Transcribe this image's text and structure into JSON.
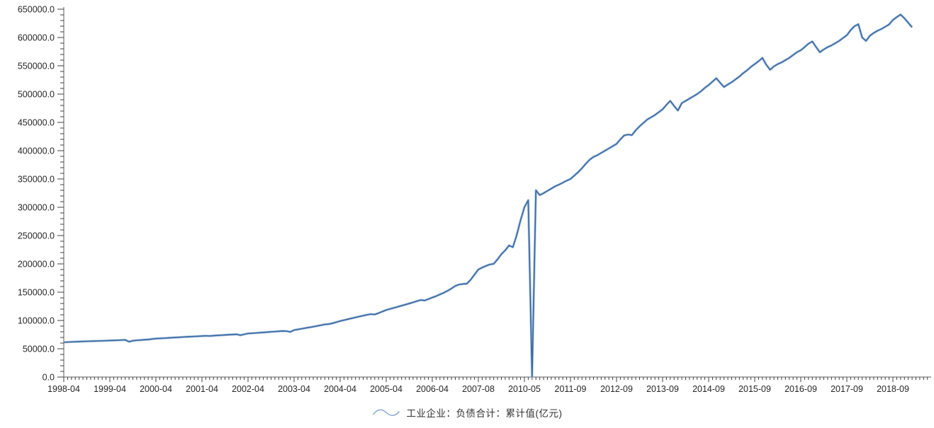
{
  "colors": {
    "background": "#ffffff",
    "axis": "#595959",
    "tick": "#404040",
    "text": "#262626",
    "line": "#3A6AA3",
    "line_halo": "#A5BfDC",
    "legend_icon": "#8AA9CE"
  },
  "chart_data": {
    "type": "line",
    "title": "",
    "legend": "工业企业：负债合计：累计值(亿元)",
    "grid": false,
    "legend_position": "bottom-center",
    "y_axis": {
      "min": 0,
      "max": 650000,
      "major_step": 50000,
      "minor_step": 10000,
      "labels": [
        "0.0",
        "50000.0",
        "100000.0",
        "150000.0",
        "200000.0",
        "250000.0",
        "300000.0",
        "350000.0",
        "400000.0",
        "450000.0",
        "500000.0",
        "550000.0",
        "600000.0",
        "650000.0"
      ]
    },
    "x_axis": {
      "tick_labels": [
        "1998-04",
        "1999-04",
        "2000-04",
        "2001-04",
        "2002-04",
        "2003-04",
        "2004-04",
        "2005-04",
        "2006-04",
        "2007-08",
        "2010-05",
        "2011-09",
        "2012-09",
        "2013-09",
        "2014-09",
        "2015-09",
        "2016-09",
        "2017-09",
        "2018-09"
      ],
      "points_per_label": 12
    },
    "series": [
      {
        "name": "工业企业：负债合计：累计值(亿元)",
        "color": "#3A6AA3",
        "values": [
          61500,
          61800,
          62100,
          62400,
          62700,
          63000,
          63200,
          63400,
          63600,
          63800,
          64000,
          64300,
          64500,
          64800,
          65100,
          65400,
          65700,
          62500,
          64200,
          64900,
          65400,
          65900,
          66400,
          67200,
          68000,
          68300,
          68700,
          69100,
          69500,
          69900,
          70300,
          70700,
          71100,
          71400,
          71800,
          72100,
          72500,
          72900,
          72600,
          73100,
          73600,
          74000,
          74400,
          74800,
          75200,
          75600,
          74000,
          75500,
          77000,
          77400,
          77900,
          78400,
          78900,
          79400,
          79900,
          80400,
          80900,
          81400,
          81200,
          79800,
          83000,
          84200,
          85400,
          86600,
          87800,
          89000,
          90300,
          91600,
          93000,
          93600,
          95000,
          97000,
          99000,
          100600,
          102200,
          103800,
          105400,
          107000,
          108500,
          110000,
          111200,
          110600,
          113000,
          115700,
          118500,
          120400,
          122300,
          124200,
          126100,
          128000,
          130000,
          132000,
          134200,
          136200,
          135200,
          137800,
          140500,
          143000,
          146000,
          149000,
          152500,
          156500,
          161000,
          163500,
          164500,
          165000,
          172000,
          181000,
          190000,
          193500,
          196500,
          199000,
          200000,
          208000,
          217000,
          224000,
          232500,
          229500,
          251000,
          277000,
          300000,
          312500,
          0,
          330000,
          321500,
          325000,
          329000,
          333000,
          337000,
          340000,
          343500,
          347000,
          350000,
          356000,
          362000,
          369000,
          377000,
          384000,
          389000,
          392000,
          396000,
          400000,
          404000,
          408000,
          412000,
          420000,
          427000,
          428500,
          427500,
          436000,
          443000,
          449000,
          455000,
          459000,
          463000,
          468000,
          473000,
          481000,
          488000,
          479000,
          471000,
          484000,
          488000,
          492000,
          496000,
          500000,
          505000,
          511000,
          516000,
          522000,
          528000,
          520000,
          512500,
          517000,
          521000,
          526000,
          531000,
          537000,
          542000,
          548000,
          553000,
          558000,
          564000,
          552000,
          543000,
          549000,
          553000,
          556000,
          560000,
          564000,
          569000,
          574000,
          577500,
          583000,
          589000,
          593000,
          583000,
          574000,
          579000,
          583000,
          586000,
          590000,
          594000,
          599000,
          604000,
          613000,
          620000,
          623500,
          600000,
          594000,
          603000,
          608000,
          612000,
          615000,
          619000,
          623000,
          631000,
          636000,
          640500,
          634000,
          626000,
          618000
        ]
      }
    ]
  }
}
